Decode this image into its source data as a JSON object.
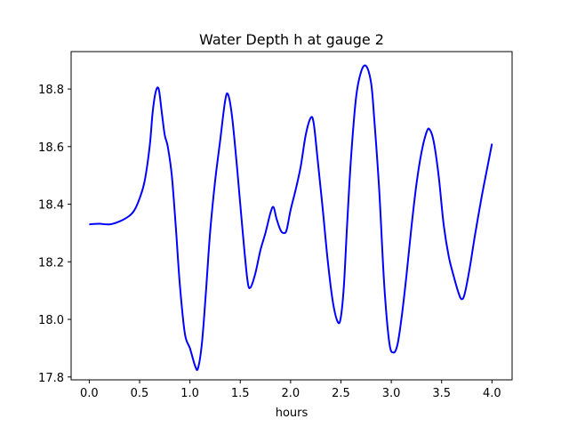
{
  "chart_data": {
    "type": "line",
    "title": "Water Depth h at gauge 2",
    "xlabel": "hours",
    "ylabel": "",
    "xlim": [
      -0.18,
      4.2
    ],
    "ylim": [
      17.79,
      18.93
    ],
    "x_ticks": [
      0.0,
      0.5,
      1.0,
      1.5,
      2.0,
      2.5,
      3.0,
      3.5,
      4.0
    ],
    "x_tick_labels": [
      "0.0",
      "0.5",
      "1.0",
      "1.5",
      "2.0",
      "2.5",
      "3.0",
      "3.5",
      "4.0"
    ],
    "y_ticks": [
      17.8,
      18.0,
      18.2,
      18.4,
      18.6,
      18.8
    ],
    "y_tick_labels": [
      "17.8",
      "18.0",
      "18.2",
      "18.4",
      "18.6",
      "18.8"
    ],
    "grid": false,
    "series": [
      {
        "color": "#0000ff",
        "x": [
          0.0,
          0.1,
          0.2,
          0.3,
          0.4,
          0.45,
          0.5,
          0.55,
          0.6,
          0.63,
          0.66,
          0.69,
          0.72,
          0.75,
          0.78,
          0.82,
          0.86,
          0.9,
          0.95,
          1.0,
          1.05,
          1.08,
          1.12,
          1.16,
          1.2,
          1.25,
          1.3,
          1.35,
          1.38,
          1.42,
          1.47,
          1.52,
          1.57,
          1.6,
          1.65,
          1.7,
          1.75,
          1.8,
          1.83,
          1.86,
          1.9,
          1.93,
          1.96,
          2.0,
          2.05,
          2.1,
          2.15,
          2.2,
          2.23,
          2.27,
          2.32,
          2.37,
          2.42,
          2.47,
          2.5,
          2.53,
          2.56,
          2.6,
          2.65,
          2.7,
          2.75,
          2.8,
          2.83,
          2.88,
          2.93,
          2.98,
          3.02,
          3.06,
          3.1,
          3.15,
          3.2,
          3.25,
          3.3,
          3.35,
          3.38,
          3.42,
          3.47,
          3.52,
          3.57,
          3.62,
          3.67,
          3.7,
          3.73,
          3.78,
          3.83,
          3.9,
          3.95,
          4.0
        ],
        "y": [
          18.33,
          18.332,
          18.33,
          18.34,
          18.36,
          18.38,
          18.42,
          18.48,
          18.6,
          18.72,
          18.79,
          18.8,
          18.72,
          18.64,
          18.6,
          18.5,
          18.32,
          18.12,
          17.95,
          17.9,
          17.84,
          17.83,
          17.92,
          18.1,
          18.3,
          18.48,
          18.62,
          18.76,
          18.78,
          18.7,
          18.52,
          18.32,
          18.14,
          18.11,
          18.16,
          18.24,
          18.3,
          18.37,
          18.39,
          18.35,
          18.31,
          18.3,
          18.31,
          18.38,
          18.45,
          18.53,
          18.64,
          18.7,
          18.68,
          18.55,
          18.38,
          18.2,
          18.06,
          17.99,
          18.01,
          18.12,
          18.32,
          18.56,
          18.77,
          18.86,
          18.88,
          18.82,
          18.7,
          18.45,
          18.12,
          17.92,
          17.885,
          17.91,
          18.0,
          18.15,
          18.32,
          18.47,
          18.58,
          18.65,
          18.66,
          18.62,
          18.5,
          18.33,
          18.22,
          18.15,
          18.09,
          18.07,
          18.09,
          18.18,
          18.29,
          18.43,
          18.52,
          18.61
        ]
      }
    ]
  }
}
